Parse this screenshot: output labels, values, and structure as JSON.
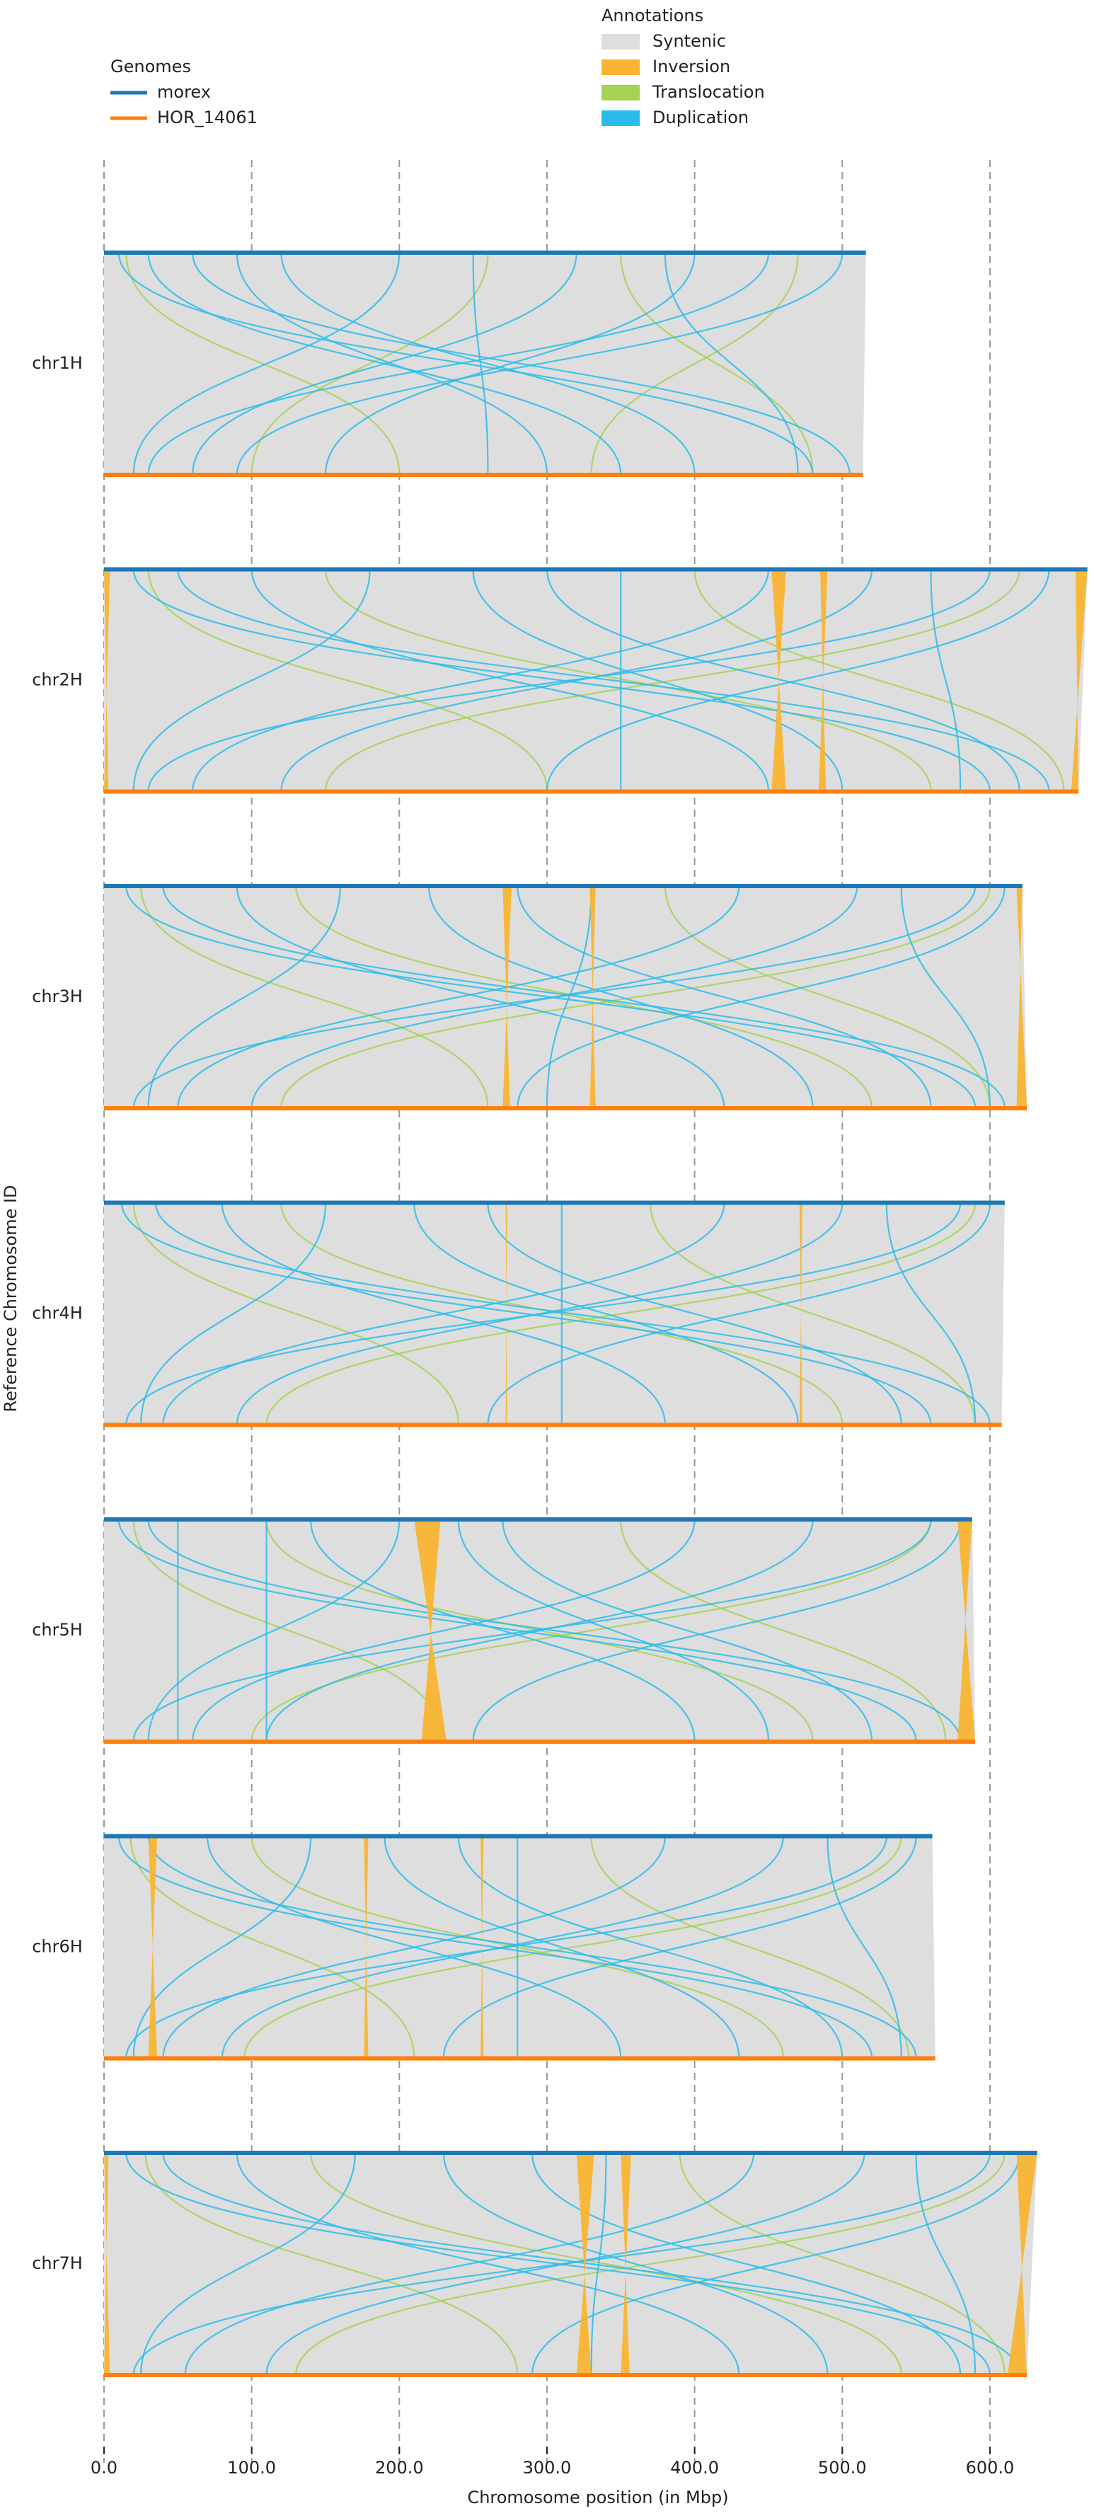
{
  "chart_data": {
    "type": "synteny",
    "xlabel": "Chromosome position (in Mbp)",
    "ylabel": "Reference Chromosome ID",
    "xlim": [
      0,
      670
    ],
    "xticks": [
      {
        "value": 0,
        "label": "0.0"
      },
      {
        "value": 100,
        "label": "100.0"
      },
      {
        "value": 200,
        "label": "200.0"
      },
      {
        "value": 300,
        "label": "300.0"
      },
      {
        "value": 400,
        "label": "400.0"
      },
      {
        "value": 500,
        "label": "500.0"
      },
      {
        "value": 600,
        "label": "600.0"
      }
    ],
    "grid": true,
    "genomes_title": "Genomes",
    "genomes": [
      {
        "name": "morex",
        "color": "#1f77b4"
      },
      {
        "name": "HOR_14061",
        "color": "#ff7f0e"
      }
    ],
    "annotations_title": "Annotations",
    "annotations": [
      {
        "name": "Syntenic",
        "color": "#dedede"
      },
      {
        "name": "Inversion",
        "color": "#f8b430"
      },
      {
        "name": "Translocation",
        "color": "#a6d254"
      },
      {
        "name": "Duplication",
        "color": "#2cbcec"
      }
    ],
    "chromosomes": [
      {
        "name": "chr1H",
        "ref_length": 516,
        "qry_length": 514,
        "inversions": [],
        "duplications": [
          [
            10,
            480
          ],
          [
            30,
            350
          ],
          [
            60,
            505
          ],
          [
            120,
            400
          ],
          [
            200,
            20
          ],
          [
            250,
            260
          ],
          [
            320,
            60
          ],
          [
            400,
            150
          ],
          [
            450,
            30
          ],
          [
            500,
            90
          ],
          [
            90,
            300
          ],
          [
            380,
            470
          ]
        ],
        "translocations": [
          [
            15,
            200
          ],
          [
            260,
            100
          ],
          [
            470,
            330
          ],
          [
            350,
            480
          ]
        ]
      },
      {
        "name": "chr2H",
        "ref_length": 666,
        "qry_length": 660,
        "inversions": [
          [
            0,
            4,
            0,
            3
          ],
          [
            452,
            462,
            452,
            462
          ],
          [
            485,
            490,
            484,
            489
          ],
          [
            658,
            666,
            655,
            660
          ]
        ],
        "duplications": [
          [
            20,
            600
          ],
          [
            50,
            640
          ],
          [
            100,
            450
          ],
          [
            180,
            20
          ],
          [
            300,
            620
          ],
          [
            450,
            60
          ],
          [
            520,
            120
          ],
          [
            600,
            30
          ],
          [
            640,
            300
          ],
          [
            350,
            350
          ],
          [
            250,
            500
          ],
          [
            560,
            580
          ]
        ],
        "translocations": [
          [
            30,
            300
          ],
          [
            400,
            650
          ],
          [
            620,
            150
          ],
          [
            150,
            560
          ]
        ]
      },
      {
        "name": "chr3H",
        "ref_length": 622,
        "qry_length": 625,
        "inversions": [
          [
            270,
            276,
            270,
            275
          ],
          [
            329,
            333,
            329,
            333
          ],
          [
            618,
            622,
            618,
            625
          ]
        ],
        "duplications": [
          [
            15,
            590
          ],
          [
            40,
            610
          ],
          [
            90,
            420
          ],
          [
            160,
            30
          ],
          [
            280,
            560
          ],
          [
            430,
            50
          ],
          [
            510,
            100
          ],
          [
            590,
            20
          ],
          [
            610,
            280
          ],
          [
            330,
            300
          ],
          [
            220,
            480
          ],
          [
            540,
            600
          ]
        ],
        "translocations": [
          [
            25,
            260
          ],
          [
            380,
            600
          ],
          [
            600,
            120
          ],
          [
            130,
            520
          ]
        ]
      },
      {
        "name": "chr4H",
        "ref_length": 610,
        "qry_length": 608,
        "inversions": [
          [
            272,
            273,
            272,
            273
          ],
          [
            471,
            473,
            471,
            473
          ]
        ],
        "duplications": [
          [
            12,
            560
          ],
          [
            35,
            600
          ],
          [
            80,
            380
          ],
          [
            150,
            25
          ],
          [
            260,
            540
          ],
          [
            420,
            40
          ],
          [
            500,
            90
          ],
          [
            580,
            15
          ],
          [
            600,
            260
          ],
          [
            310,
            310
          ],
          [
            210,
            470
          ],
          [
            530,
            590
          ]
        ],
        "translocations": [
          [
            20,
            240
          ],
          [
            370,
            590
          ],
          [
            590,
            110
          ],
          [
            120,
            500
          ]
        ]
      },
      {
        "name": "chr5H",
        "ref_length": 588,
        "qry_length": 590,
        "inversions": [
          [
            210,
            228,
            215,
            232
          ],
          [
            578,
            588,
            578,
            590
          ]
        ],
        "duplications": [
          [
            10,
            550
          ],
          [
            30,
            580
          ],
          [
            50,
            50
          ],
          [
            110,
            110
          ],
          [
            140,
            400
          ],
          [
            200,
            30
          ],
          [
            270,
            520
          ],
          [
            400,
            60
          ],
          [
            480,
            110
          ],
          [
            560,
            20
          ],
          [
            580,
            250
          ],
          [
            240,
            450
          ]
        ],
        "translocations": [
          [
            20,
            230
          ],
          [
            350,
            570
          ],
          [
            560,
            100
          ],
          [
            110,
            480
          ]
        ]
      },
      {
        "name": "chr6H",
        "ref_length": 561,
        "qry_length": 563,
        "inversions": [
          [
            30,
            36,
            30,
            36
          ],
          [
            176,
            179,
            176,
            179
          ],
          [
            255,
            257,
            255,
            257
          ]
        ],
        "duplications": [
          [
            10,
            520
          ],
          [
            30,
            550
          ],
          [
            70,
            350
          ],
          [
            140,
            20
          ],
          [
            240,
            500
          ],
          [
            380,
            40
          ],
          [
            460,
            80
          ],
          [
            530,
            15
          ],
          [
            550,
            230
          ],
          [
            280,
            280
          ],
          [
            190,
            430
          ],
          [
            490,
            540
          ]
        ],
        "translocations": [
          [
            18,
            210
          ],
          [
            330,
            545
          ],
          [
            540,
            95
          ],
          [
            100,
            460
          ]
        ]
      },
      {
        "name": "chr7H",
        "ref_length": 632,
        "qry_length": 625,
        "inversions": [
          [
            0,
            3,
            0,
            4
          ],
          [
            320,
            332,
            320,
            330
          ],
          [
            350,
            357,
            350,
            356
          ],
          [
            618,
            632,
            612,
            625
          ]
        ],
        "duplications": [
          [
            15,
            600
          ],
          [
            40,
            620
          ],
          [
            90,
            430
          ],
          [
            170,
            25
          ],
          [
            290,
            580
          ],
          [
            440,
            55
          ],
          [
            515,
            110
          ],
          [
            600,
            20
          ],
          [
            620,
            290
          ],
          [
            340,
            330
          ],
          [
            230,
            490
          ],
          [
            550,
            590
          ]
        ],
        "translocations": [
          [
            28,
            280
          ],
          [
            390,
            610
          ],
          [
            610,
            130
          ],
          [
            140,
            540
          ]
        ]
      }
    ]
  }
}
